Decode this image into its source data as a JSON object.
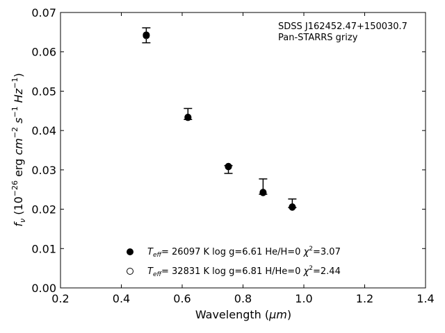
{
  "chart_data": {
    "type": "scatter",
    "xlabel_main": "Wavelength (",
    "xlabel_unit": "μm",
    "xlabel_close": ")",
    "ylabel": {
      "sym": "f",
      "sub": "ν",
      "p1": " (10",
      "e1": "−26",
      "p2": " erg ",
      "u1": "cm",
      "e2": "−2",
      "p3": " ",
      "u2": "s",
      "e3": "−1",
      "p4": " ",
      "u3": "Hz",
      "e4": "−1",
      "p5": ")"
    },
    "xlim": [
      0.2,
      1.4
    ],
    "ylim": [
      0.0,
      0.07
    ],
    "xticks": [
      0.2,
      0.4,
      0.6,
      0.8,
      1.0,
      1.2,
      1.4
    ],
    "xtick_labels": [
      "0.2",
      "0.4",
      "0.6",
      "0.8",
      "1.0",
      "1.2",
      "1.4"
    ],
    "yticks": [
      0.0,
      0.01,
      0.02,
      0.03,
      0.04,
      0.05,
      0.06,
      0.07
    ],
    "ytick_labels": [
      "0.00",
      "0.01",
      "0.02",
      "0.03",
      "0.04",
      "0.05",
      "0.06",
      "0.07"
    ],
    "annotation": [
      "SDSS J162452.47+150030.7",
      "Pan-STARRS grizy"
    ],
    "observed": [
      {
        "x": 0.482,
        "y": 0.0642,
        "err_hi": 0.0019,
        "err_lo": 0.0019
      },
      {
        "x": 0.619,
        "y": 0.0435,
        "err_hi": 0.0021,
        "err_lo": 0.0007
      },
      {
        "x": 0.752,
        "y": 0.0311,
        "err_hi": 0.0,
        "err_lo": 0.002
      },
      {
        "x": 0.866,
        "y": 0.0244,
        "err_hi": 0.0033,
        "err_lo": 0.0006
      },
      {
        "x": 0.962,
        "y": 0.0207,
        "err_hi": 0.0019,
        "err_lo": 0.0003
      }
    ],
    "series": [
      {
        "marker": "filled",
        "label": {
          "t": "T",
          "tsub": "eff",
          "a": "= 26097 K  log g=6.61  He/H=0  ",
          "chi": "χ",
          "chiexp": "2",
          "b": "=3.07"
        },
        "x": [
          0.482,
          0.619,
          0.752,
          0.866,
          0.962
        ],
        "y": [
          0.0643,
          0.0434,
          0.0309,
          0.0243,
          0.0206
        ]
      },
      {
        "marker": "open",
        "label": {
          "t": "T",
          "tsub": "eff",
          "a": "= 32831 K  log g=6.81  H/He=0  ",
          "chi": "χ",
          "chiexp": "2",
          "b": "=2.44"
        },
        "x": [
          0.482,
          0.619,
          0.752,
          0.866,
          0.962
        ],
        "y": [
          0.0641,
          0.0433,
          0.0308,
          0.0242,
          0.0205
        ]
      }
    ],
    "colors": {
      "marker": "#000000",
      "axis": "#000000",
      "background": "#ffffff"
    }
  }
}
